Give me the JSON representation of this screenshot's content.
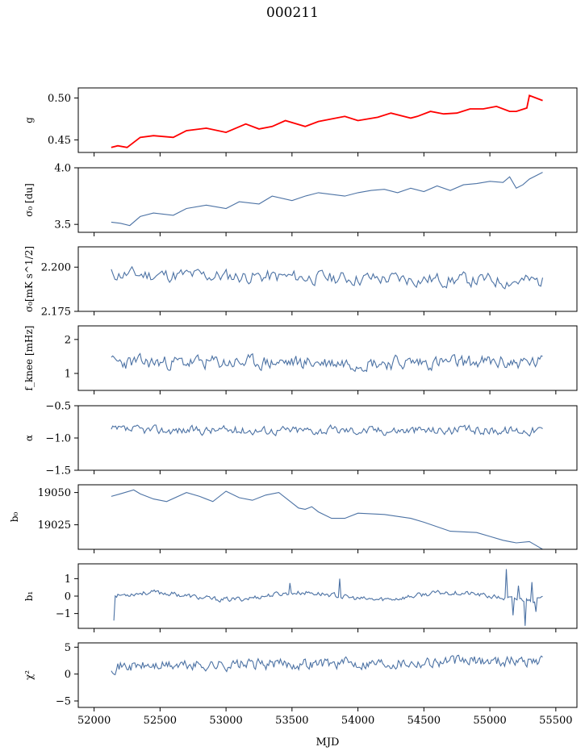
{
  "figure": {
    "title": "000211",
    "xlabel": "MJD"
  },
  "colors": {
    "series": "#4c72a4",
    "fit": "#ff0000",
    "axis": "#000000"
  },
  "chart_data": [
    {
      "type": "line",
      "id": "g",
      "ylabel": "g",
      "ylim": [
        0.435,
        0.512
      ],
      "yticks": [
        0.45,
        0.5
      ],
      "ytick_labels": [
        "0.45",
        "0.50"
      ],
      "xlim": [
        51880,
        55660
      ],
      "series": [
        {
          "kind": "baseline",
          "x": [
            52130,
            52180,
            52250,
            52350,
            52450,
            52600,
            52700,
            52850,
            53000,
            53150,
            53250,
            53350,
            53450,
            53600,
            53700,
            53900,
            54000,
            54150,
            54250,
            54400,
            54450,
            54550,
            54650,
            54750,
            54850,
            54950,
            55050,
            55150,
            55200,
            55280,
            55300,
            55400
          ],
          "y": [
            0.441,
            0.443,
            0.441,
            0.453,
            0.455,
            0.453,
            0.461,
            0.464,
            0.459,
            0.469,
            0.463,
            0.466,
            0.473,
            0.466,
            0.472,
            0.478,
            0.473,
            0.477,
            0.482,
            0.476,
            0.478,
            0.484,
            0.481,
            0.482,
            0.487,
            0.487,
            0.49,
            0.484,
            0.484,
            0.488,
            0.503,
            0.497
          ]
        },
        {
          "kind": "overlay",
          "x": [
            52130,
            52180,
            52250,
            52350,
            52450,
            52600,
            52700,
            52850,
            53000,
            53150,
            53250,
            53350,
            53450,
            53600,
            53700,
            53900,
            54000,
            54150,
            54250,
            54400,
            54450,
            54550,
            54650,
            54750,
            54850,
            54950,
            55050,
            55150,
            55200,
            55280,
            55300,
            55400
          ],
          "y": [
            0.441,
            0.443,
            0.441,
            0.453,
            0.455,
            0.453,
            0.461,
            0.464,
            0.459,
            0.469,
            0.463,
            0.466,
            0.473,
            0.466,
            0.472,
            0.478,
            0.473,
            0.477,
            0.482,
            0.476,
            0.478,
            0.484,
            0.481,
            0.482,
            0.487,
            0.487,
            0.49,
            0.484,
            0.484,
            0.488,
            0.503,
            0.497
          ]
        }
      ]
    },
    {
      "type": "line",
      "id": "sigma0",
      "ylabel": "σ₀ [du]",
      "ylim": [
        3.43,
        4.0
      ],
      "yticks": [
        3.5,
        4.0
      ],
      "ytick_labels": [
        "3.5",
        "4.0"
      ],
      "xlim": [
        51880,
        55660
      ],
      "series": [
        {
          "x": [
            52130,
            52200,
            52270,
            52350,
            52450,
            52600,
            52700,
            52850,
            53000,
            53100,
            53250,
            53350,
            53500,
            53600,
            53700,
            53900,
            54000,
            54100,
            54200,
            54300,
            54400,
            54500,
            54600,
            54700,
            54800,
            54900,
            55000,
            55100,
            55150,
            55200,
            55250,
            55300,
            55400
          ],
          "y": [
            3.52,
            3.51,
            3.49,
            3.57,
            3.6,
            3.58,
            3.64,
            3.67,
            3.64,
            3.7,
            3.68,
            3.75,
            3.71,
            3.75,
            3.78,
            3.75,
            3.78,
            3.8,
            3.81,
            3.78,
            3.82,
            3.79,
            3.84,
            3.8,
            3.85,
            3.86,
            3.88,
            3.87,
            3.92,
            3.82,
            3.85,
            3.9,
            3.96
          ]
        }
      ]
    },
    {
      "type": "line",
      "id": "sigma0_units",
      "ylabel": "σ₀[mK s^1/2]",
      "ylim": [
        2.175,
        2.2115
      ],
      "yticks": [
        2.175,
        2.2
      ],
      "ytick_labels": [
        "2.175",
        "2.200"
      ],
      "xlim": [
        51880,
        55660
      ],
      "series": [
        {
          "x_range": [
            52130,
            55400
          ],
          "n": 230,
          "base": 2.196,
          "amp": 0.0035,
          "seed": 11,
          "trend_end": -0.004
        }
      ]
    },
    {
      "type": "line",
      "id": "fknee",
      "ylabel": "f_knee [mHz]",
      "ylim": [
        0.5,
        2.4
      ],
      "yticks": [
        1,
        2
      ],
      "ytick_labels": [
        "1",
        "2"
      ],
      "xlim": [
        51880,
        55660
      ],
      "series": [
        {
          "x_range": [
            52130,
            55400
          ],
          "n": 300,
          "base": 1.32,
          "amp": 0.18,
          "seed": 23,
          "trend_end": 0
        }
      ]
    },
    {
      "type": "line",
      "id": "alpha",
      "ylabel": "α",
      "ylim": [
        -1.5,
        -0.5
      ],
      "yticks": [
        -1.5,
        -1.0,
        -0.5
      ],
      "ytick_labels": [
        "−1.5",
        "−1.0",
        "−0.5"
      ],
      "xlim": [
        51880,
        55660
      ],
      "series": [
        {
          "x_range": [
            52130,
            55400
          ],
          "n": 300,
          "base": -0.88,
          "amp": 0.06,
          "seed": 37,
          "trend_end": 0
        }
      ]
    },
    {
      "type": "line",
      "id": "b0",
      "ylabel": "b₀",
      "ylim": [
        19006,
        19056
      ],
      "yticks": [
        19025,
        19050
      ],
      "ytick_labels": [
        "19025",
        "19050"
      ],
      "xlim": [
        51880,
        55660
      ],
      "series": [
        {
          "x": [
            52130,
            52200,
            52300,
            52350,
            52450,
            52550,
            52700,
            52800,
            52900,
            53000,
            53100,
            53200,
            53300,
            53400,
            53500,
            53550,
            53600,
            53650,
            53700,
            53800,
            53900,
            54000,
            54200,
            54400,
            54500,
            54700,
            54900,
            55000,
            55100,
            55150,
            55200,
            55300,
            55350,
            55400
          ],
          "y": [
            19047,
            19049,
            19052,
            19049,
            19045,
            19043,
            19050,
            19047,
            19043,
            19051,
            19046,
            19044,
            19048,
            19050,
            19042,
            19038,
            19037,
            19039,
            19035,
            19030,
            19030,
            19034,
            19033,
            19030,
            19027,
            19020,
            19019,
            19016,
            19013,
            19012,
            19011,
            19012,
            19009,
            19006
          ]
        }
      ]
    },
    {
      "type": "line",
      "id": "b1",
      "ylabel": "b₁",
      "ylim": [
        -1.85,
        1.85
      ],
      "yticks": [
        -1,
        0,
        1
      ],
      "ytick_labels": [
        "−1",
        "0",
        "1"
      ],
      "xlim": [
        51880,
        55660
      ],
      "series": [
        {
          "x_range": [
            52150,
            55400
          ],
          "n": 320,
          "base": 0,
          "amp": 0.12,
          "seed": 53,
          "trend_end": 0,
          "wave_amp": 0.2,
          "spikes": [
            [
              52130,
              -1.4
            ],
            [
              53480,
              0.75
            ],
            [
              53860,
              1.0
            ],
            [
              55120,
              1.55
            ],
            [
              55180,
              -1.1
            ],
            [
              55220,
              0.6
            ],
            [
              55270,
              -1.7
            ],
            [
              55320,
              0.8
            ],
            [
              55350,
              -0.9
            ]
          ]
        }
      ]
    },
    {
      "type": "line",
      "id": "chi2",
      "ylabel": "χ²",
      "ylim": [
        -6.2,
        5.8
      ],
      "yticks": [
        -5,
        0,
        5
      ],
      "ytick_labels": [
        "−5",
        "0",
        "5"
      ],
      "xlim": [
        51880,
        55660
      ],
      "xticks": [
        52000,
        52500,
        53000,
        53500,
        54000,
        54500,
        55000,
        55500
      ],
      "xtick_labels": [
        "52000",
        "52500",
        "53000",
        "53500",
        "54000",
        "54500",
        "55000",
        "55500"
      ],
      "series": [
        {
          "x_range": [
            52130,
            55400
          ],
          "n": 330,
          "base": 1.4,
          "amp": 0.9,
          "seed": 71,
          "trend_end": 1.2
        }
      ]
    }
  ]
}
